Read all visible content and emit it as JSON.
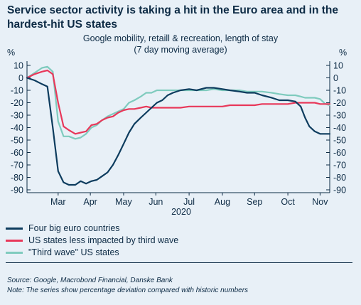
{
  "title": "Service sector activity is taking a hit in the Euro area and in the hardest-hit US states",
  "subtitle_line1": "Google mobility, retaill & recreation, length of stay",
  "subtitle_line2": "(7 day moving average)",
  "unit_left": "%",
  "unit_right": "%",
  "source": "Source: Google, Macrobond Financial, Danske Bank",
  "note": "Note: The series show percentage deviation compared with historic numbers",
  "colors": {
    "background": "#e8f0f7",
    "text": "#0d2b45",
    "euro": "#0d3c5e",
    "us_less": "#e8385a",
    "us_third": "#7fcbbe"
  },
  "chart_data": {
    "type": "line",
    "title": "Google mobility, retaill & recreation, length of stay",
    "xlabel": "2020",
    "ylabel": "%",
    "ylim": [
      -90,
      10
    ],
    "yticks": [
      10,
      0,
      -10,
      -20,
      -30,
      -40,
      -50,
      -60,
      -70,
      -80,
      -90
    ],
    "grid": false,
    "x_range": [
      "2020-02-16",
      "2020-11-24"
    ],
    "x_tick_labels": [
      "Mar",
      "Apr",
      "May",
      "Jun",
      "Jul",
      "Aug",
      "Sep",
      "Oct",
      "Nov"
    ],
    "x_tick_dates": [
      "2020-03-16",
      "2020-04-15",
      "2020-05-16",
      "2020-06-15",
      "2020-07-16",
      "2020-08-16",
      "2020-09-15",
      "2020-10-16",
      "2020-11-15"
    ],
    "legend_position": "bottom-left",
    "x": [
      "2020-02-16",
      "2020-02-23",
      "2020-03-01",
      "2020-03-06",
      "2020-03-11",
      "2020-03-16",
      "2020-03-21",
      "2020-03-26",
      "2020-04-01",
      "2020-04-06",
      "2020-04-11",
      "2020-04-16",
      "2020-04-21",
      "2020-04-26",
      "2020-05-01",
      "2020-05-06",
      "2020-05-11",
      "2020-05-16",
      "2020-05-21",
      "2020-05-26",
      "2020-06-01",
      "2020-06-06",
      "2020-06-11",
      "2020-06-16",
      "2020-06-21",
      "2020-06-26",
      "2020-07-01",
      "2020-07-08",
      "2020-07-16",
      "2020-07-23",
      "2020-08-01",
      "2020-08-08",
      "2020-08-16",
      "2020-08-23",
      "2020-09-01",
      "2020-09-08",
      "2020-09-15",
      "2020-09-22",
      "2020-10-01",
      "2020-10-08",
      "2020-10-16",
      "2020-10-23",
      "2020-10-28",
      "2020-11-01",
      "2020-11-05",
      "2020-11-10",
      "2020-11-15",
      "2020-11-20",
      "2020-11-24"
    ],
    "series": [
      {
        "name": "Four big euro countries",
        "color": "#0d3c5e",
        "values": [
          0,
          -2,
          -5,
          -7,
          -40,
          -75,
          -84,
          -86,
          -86,
          -83,
          -85,
          -83,
          -82,
          -79,
          -76,
          -70,
          -62,
          -53,
          -44,
          -37,
          -32,
          -28,
          -24,
          -20,
          -18,
          -14,
          -12,
          -10,
          -9,
          -10,
          -8,
          -8,
          -9,
          -10,
          -11,
          -12,
          -12,
          -14,
          -16,
          -18,
          -18,
          -19,
          -23,
          -32,
          -39,
          -43,
          -45,
          -45,
          -45
        ]
      },
      {
        "name": "US states less impacted by third wave",
        "color": "#e8385a",
        "values": [
          0,
          3,
          5,
          6,
          3,
          -20,
          -39,
          -42,
          -45,
          -44,
          -43,
          -38,
          -37,
          -34,
          -32,
          -31,
          -28,
          -26,
          -25,
          -25,
          -24,
          -23,
          -24,
          -24,
          -24,
          -24,
          -24,
          -24,
          -23,
          -23,
          -23,
          -23,
          -23,
          -22,
          -22,
          -22,
          -22,
          -21,
          -21,
          -21,
          -21,
          -20,
          -20,
          -20,
          -20,
          -20,
          -21,
          -21,
          -21
        ]
      },
      {
        "name": "\"Third wave\" US states",
        "color": "#7fcbbe",
        "values": [
          0,
          4,
          8,
          9,
          5,
          -35,
          -47,
          -47,
          -49,
          -48,
          -45,
          -40,
          -38,
          -34,
          -31,
          -29,
          -27,
          -25,
          -20,
          -18,
          -15,
          -12,
          -12,
          -10,
          -10,
          -10,
          -10,
          -10,
          -10,
          -10,
          -10,
          -9,
          -10,
          -10,
          -10,
          -11,
          -11,
          -11,
          -12,
          -13,
          -14,
          -14,
          -15,
          -16,
          -16,
          -16,
          -17,
          -21,
          -22
        ]
      }
    ]
  }
}
